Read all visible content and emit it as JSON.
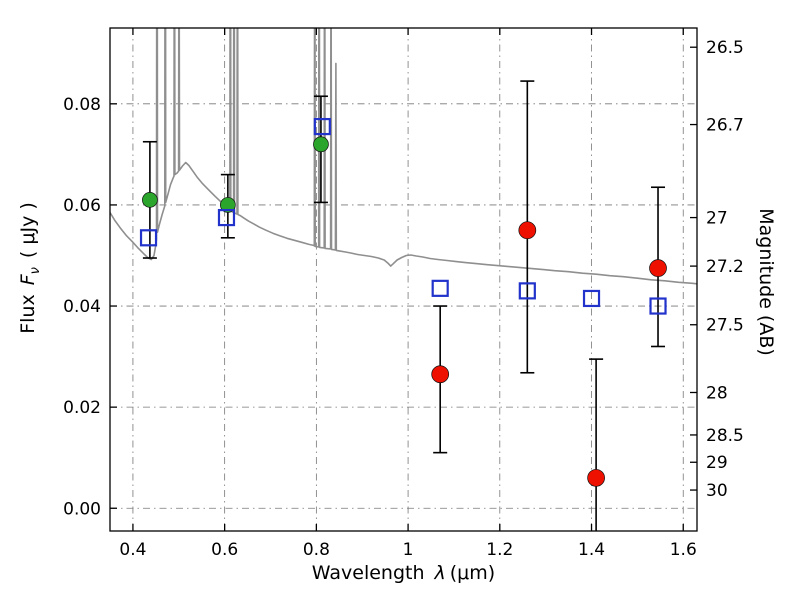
{
  "figure": {
    "background": "#ffffff",
    "xlabel": {
      "prefix": "Wavelength",
      "symbol": "λ",
      "suffix": "(μm)"
    },
    "ylabel_left": {
      "prefix": "Flux",
      "symbol": "F",
      "sub": "ν",
      "suffix": "( μJy )"
    },
    "ylabel_right": "Magnitude (AB)"
  },
  "chart_data": {
    "type": "line",
    "title": "",
    "xlabel": "Wavelength λ (μm)",
    "ylabel_left": "Flux Fν ( μJy )",
    "ylabel_right": "Magnitude (AB)",
    "xlim": [
      0.35,
      1.63
    ],
    "ylim": [
      -0.0045,
      0.095
    ],
    "grid": {
      "on": true,
      "style": "dash-dot",
      "color": "#606060"
    },
    "frame_color": "#000000",
    "x_ticks": {
      "values": [
        0.4,
        0.6,
        0.8,
        1.0,
        1.2,
        1.4,
        1.6
      ],
      "labels": [
        "0.4",
        "0.6",
        "0.8",
        "1",
        "1.2",
        "1.4",
        "1.6"
      ]
    },
    "y_ticks_left": {
      "values": [
        0.0,
        0.02,
        0.04,
        0.06,
        0.08
      ],
      "labels": [
        "0.00",
        "0.02",
        "0.04",
        "0.06",
        "0.08"
      ]
    },
    "y_ticks_right": {
      "labels": [
        "26.5",
        "26.7",
        "27",
        "27.2",
        "27.5",
        "28",
        "28.5",
        "29",
        "30"
      ],
      "flux_values": [
        0.0912,
        0.0759,
        0.0575,
        0.0479,
        0.0363,
        0.0229,
        0.0145,
        0.0091,
        0.0036
      ]
    },
    "series": [
      {
        "name": "model-spectrum",
        "type": "line",
        "color": "#8f8f8f",
        "width": 1.6,
        "points": [
          [
            0.35,
            0.0585
          ],
          [
            0.36,
            0.057
          ],
          [
            0.372,
            0.0555
          ],
          [
            0.385,
            0.054
          ],
          [
            0.398,
            0.0528
          ],
          [
            0.41,
            0.0516
          ],
          [
            0.422,
            0.0505
          ],
          [
            0.432,
            0.0496
          ],
          [
            0.44,
            0.0492
          ],
          [
            0.446,
            0.05
          ],
          [
            0.45,
            0.0522
          ],
          [
            0.4515,
            0.0532
          ],
          [
            0.4525,
            0.18
          ],
          [
            0.4535,
            0.0546
          ],
          [
            0.458,
            0.0562
          ],
          [
            0.464,
            0.0582
          ],
          [
            0.4695,
            0.0598
          ],
          [
            0.4705,
            0.2
          ],
          [
            0.4715,
            0.0605
          ],
          [
            0.476,
            0.062
          ],
          [
            0.482,
            0.064
          ],
          [
            0.488,
            0.0654
          ],
          [
            0.4895,
            0.0657
          ],
          [
            0.4905,
            0.16
          ],
          [
            0.4915,
            0.066
          ],
          [
            0.496,
            0.0663
          ],
          [
            0.4995,
            0.0667
          ],
          [
            0.5005,
            0.13
          ],
          [
            0.5015,
            0.0669
          ],
          [
            0.508,
            0.0677
          ],
          [
            0.515,
            0.0684
          ],
          [
            0.522,
            0.0678
          ],
          [
            0.53,
            0.0668
          ],
          [
            0.54,
            0.0655
          ],
          [
            0.552,
            0.0642
          ],
          [
            0.565,
            0.063
          ],
          [
            0.578,
            0.0618
          ],
          [
            0.592,
            0.0606
          ],
          [
            0.605,
            0.0596
          ],
          [
            0.61,
            0.0592
          ],
          [
            0.6115,
            0.059
          ],
          [
            0.6125,
            0.18
          ],
          [
            0.6135,
            0.0588
          ],
          [
            0.6155,
            0.0587
          ],
          [
            0.6195,
            0.0585
          ],
          [
            0.6205,
            0.2
          ],
          [
            0.6215,
            0.0584
          ],
          [
            0.627,
            0.0582
          ],
          [
            0.628,
            0.15
          ],
          [
            0.629,
            0.0581
          ],
          [
            0.634,
            0.0579
          ],
          [
            0.642,
            0.0574
          ],
          [
            0.652,
            0.0568
          ],
          [
            0.664,
            0.0562
          ],
          [
            0.676,
            0.0556
          ],
          [
            0.69,
            0.055
          ],
          [
            0.705,
            0.0544
          ],
          [
            0.72,
            0.0539
          ],
          [
            0.736,
            0.0534
          ],
          [
            0.752,
            0.053
          ],
          [
            0.768,
            0.0526
          ],
          [
            0.784,
            0.0522
          ],
          [
            0.794,
            0.052
          ],
          [
            0.7955,
            0.0519
          ],
          [
            0.7965,
            0.15
          ],
          [
            0.7975,
            0.0518
          ],
          [
            0.805,
            0.0517
          ],
          [
            0.806,
            0.18
          ],
          [
            0.807,
            0.0516
          ],
          [
            0.817,
            0.0515
          ],
          [
            0.818,
            0.16
          ],
          [
            0.819,
            0.0514
          ],
          [
            0.831,
            0.0513
          ],
          [
            0.832,
            0.12
          ],
          [
            0.833,
            0.0512
          ],
          [
            0.8415,
            0.0511
          ],
          [
            0.8425,
            0.088
          ],
          [
            0.8435,
            0.051
          ],
          [
            0.85,
            0.0509
          ],
          [
            0.862,
            0.0507
          ],
          [
            0.875,
            0.0505
          ],
          [
            0.89,
            0.0502
          ],
          [
            0.905,
            0.05
          ],
          [
            0.92,
            0.0498
          ],
          [
            0.935,
            0.0495
          ],
          [
            0.948,
            0.0491
          ],
          [
            0.956,
            0.0485
          ],
          [
            0.962,
            0.0479
          ],
          [
            0.968,
            0.0484
          ],
          [
            0.976,
            0.0491
          ],
          [
            0.986,
            0.0496
          ],
          [
            0.996,
            0.05
          ],
          [
            1.006,
            0.0501
          ],
          [
            1.018,
            0.0499
          ],
          [
            1.032,
            0.0497
          ],
          [
            1.048,
            0.0494
          ],
          [
            1.065,
            0.0492
          ],
          [
            1.085,
            0.049
          ],
          [
            1.105,
            0.0488
          ],
          [
            1.125,
            0.0486
          ],
          [
            1.148,
            0.0484
          ],
          [
            1.17,
            0.0482
          ],
          [
            1.195,
            0.048
          ],
          [
            1.22,
            0.0478
          ],
          [
            1.245,
            0.0476
          ],
          [
            1.27,
            0.0474
          ],
          [
            1.295,
            0.0472
          ],
          [
            1.32,
            0.047
          ],
          [
            1.35,
            0.0468
          ],
          [
            1.38,
            0.0465
          ],
          [
            1.41,
            0.0463
          ],
          [
            1.44,
            0.046
          ],
          [
            1.47,
            0.0458
          ],
          [
            1.5,
            0.0455
          ],
          [
            1.53,
            0.0452
          ],
          [
            1.56,
            0.045
          ],
          [
            1.59,
            0.0447
          ],
          [
            1.62,
            0.0445
          ],
          [
            1.63,
            0.0444
          ]
        ]
      },
      {
        "name": "green-points",
        "type": "scatter",
        "marker": "circle",
        "color": "#2ca52c",
        "size": 7.5,
        "points": [
          [
            0.437,
            0.061
          ],
          [
            0.607,
            0.06
          ],
          [
            0.81,
            0.072
          ]
        ]
      },
      {
        "name": "blue-squares",
        "type": "scatter",
        "marker": "open-square",
        "color": "#2233cc",
        "size": 7.5,
        "points": [
          [
            0.434,
            0.0535
          ],
          [
            0.604,
            0.0575
          ],
          [
            0.813,
            0.0755
          ],
          [
            1.07,
            0.0435
          ],
          [
            1.26,
            0.043
          ],
          [
            1.4,
            0.0415
          ],
          [
            1.545,
            0.04
          ]
        ]
      },
      {
        "name": "red-points",
        "type": "scatter",
        "marker": "circle",
        "color": "#ee1100",
        "size": 8.5,
        "points": [
          [
            1.07,
            0.0265
          ],
          [
            1.26,
            0.055
          ],
          [
            1.41,
            0.006
          ],
          [
            1.545,
            0.0475
          ]
        ]
      }
    ],
    "error_bars": {
      "color": "#000000",
      "items": [
        {
          "x": 0.437,
          "y": 0.061,
          "ylo": 0.0495,
          "yhi": 0.0725
        },
        {
          "x": 0.607,
          "y": 0.06,
          "ylo": 0.0535,
          "yhi": 0.066
        },
        {
          "x": 0.81,
          "y": 0.072,
          "ylo": 0.0605,
          "yhi": 0.0815
        },
        {
          "x": 1.07,
          "y": 0.0265,
          "ylo": 0.011,
          "yhi": 0.04
        },
        {
          "x": 1.26,
          "y": 0.055,
          "ylo": 0.0268,
          "yhi": 0.0845
        },
        {
          "x": 1.41,
          "y": 0.006,
          "ylo": -0.006,
          "yhi": 0.0295
        },
        {
          "x": 1.545,
          "y": 0.0475,
          "ylo": 0.032,
          "yhi": 0.0635
        }
      ]
    }
  }
}
